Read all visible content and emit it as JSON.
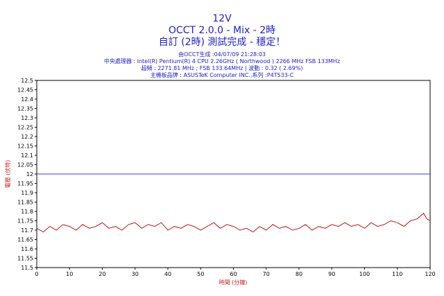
{
  "header": {
    "title": "12V",
    "subtitle": "OCCT 2.0.0 - Mix - 2時",
    "status": "自訂 (2時) 測試完成 - 穩定！"
  },
  "info": {
    "generated": "由OCCT生成 :04/07/09 21:28:03",
    "cpu": "中央處理器 : Intel(R) Pentium(R) 4 CPU 2.26GHz ( Northwood ) 2266 MHz FSB 133MHz",
    "oc": "超頻 : 2271.81 MHz ; FSB 133.64MHz | 波動 : 0.32 ( 2.69%)",
    "board": "主機板品牌 : ASUSTeK Computer INC.,系列 :P4T533-C"
  },
  "colors": {
    "background": "#ffffff",
    "plot_background": "#ffffff",
    "title": "#2020c0",
    "data_line": "#b01818",
    "reference_line": "#3040e0",
    "axis_label": "#c02020"
  },
  "chart_data": {
    "type": "line",
    "title": "12V",
    "xlabel": "時間 (分鐘)",
    "ylabel": "電壓 (伏特)",
    "xlim": [
      0,
      120
    ],
    "ylim": [
      11.5,
      12.5
    ],
    "x_ticks": [
      0,
      10,
      20,
      30,
      40,
      50,
      60,
      70,
      80,
      90,
      100,
      110,
      120
    ],
    "y_ticks": [
      11.5,
      11.55,
      11.6,
      11.65,
      11.7,
      11.75,
      11.8,
      11.85,
      11.9,
      11.95,
      12,
      12.05,
      12.1,
      12.15,
      12.2,
      12.25,
      12.3,
      12.35,
      12.4,
      12.45,
      12.5
    ],
    "grid": false,
    "reference_line": {
      "value": 12.0
    },
    "series": [
      {
        "x": [
          0,
          2,
          4,
          6,
          8,
          10,
          12,
          14,
          16,
          18,
          20,
          22,
          24,
          26,
          28,
          30,
          32,
          34,
          36,
          38,
          40,
          42,
          44,
          46,
          48,
          50,
          52,
          54,
          56,
          58,
          60,
          62,
          64,
          66,
          68,
          70,
          72,
          74,
          76,
          78,
          80,
          82,
          84,
          86,
          88,
          90,
          92,
          94,
          96,
          98,
          100,
          102,
          104,
          106,
          108,
          110,
          112,
          114,
          116,
          118,
          119,
          120
        ],
        "values": [
          11.71,
          11.69,
          11.72,
          11.7,
          11.73,
          11.72,
          11.7,
          11.73,
          11.71,
          11.72,
          11.74,
          11.71,
          11.72,
          11.7,
          11.73,
          11.74,
          11.71,
          11.73,
          11.72,
          11.74,
          11.7,
          11.72,
          11.71,
          11.73,
          11.72,
          11.7,
          11.72,
          11.74,
          11.71,
          11.73,
          11.72,
          11.7,
          11.71,
          11.69,
          11.72,
          11.7,
          11.73,
          11.71,
          11.72,
          11.7,
          11.71,
          11.73,
          11.7,
          11.72,
          11.71,
          11.73,
          11.72,
          11.74,
          11.72,
          11.73,
          11.71,
          11.74,
          11.72,
          11.73,
          11.75,
          11.74,
          11.72,
          11.75,
          11.76,
          11.79,
          11.76,
          11.75
        ]
      }
    ]
  }
}
